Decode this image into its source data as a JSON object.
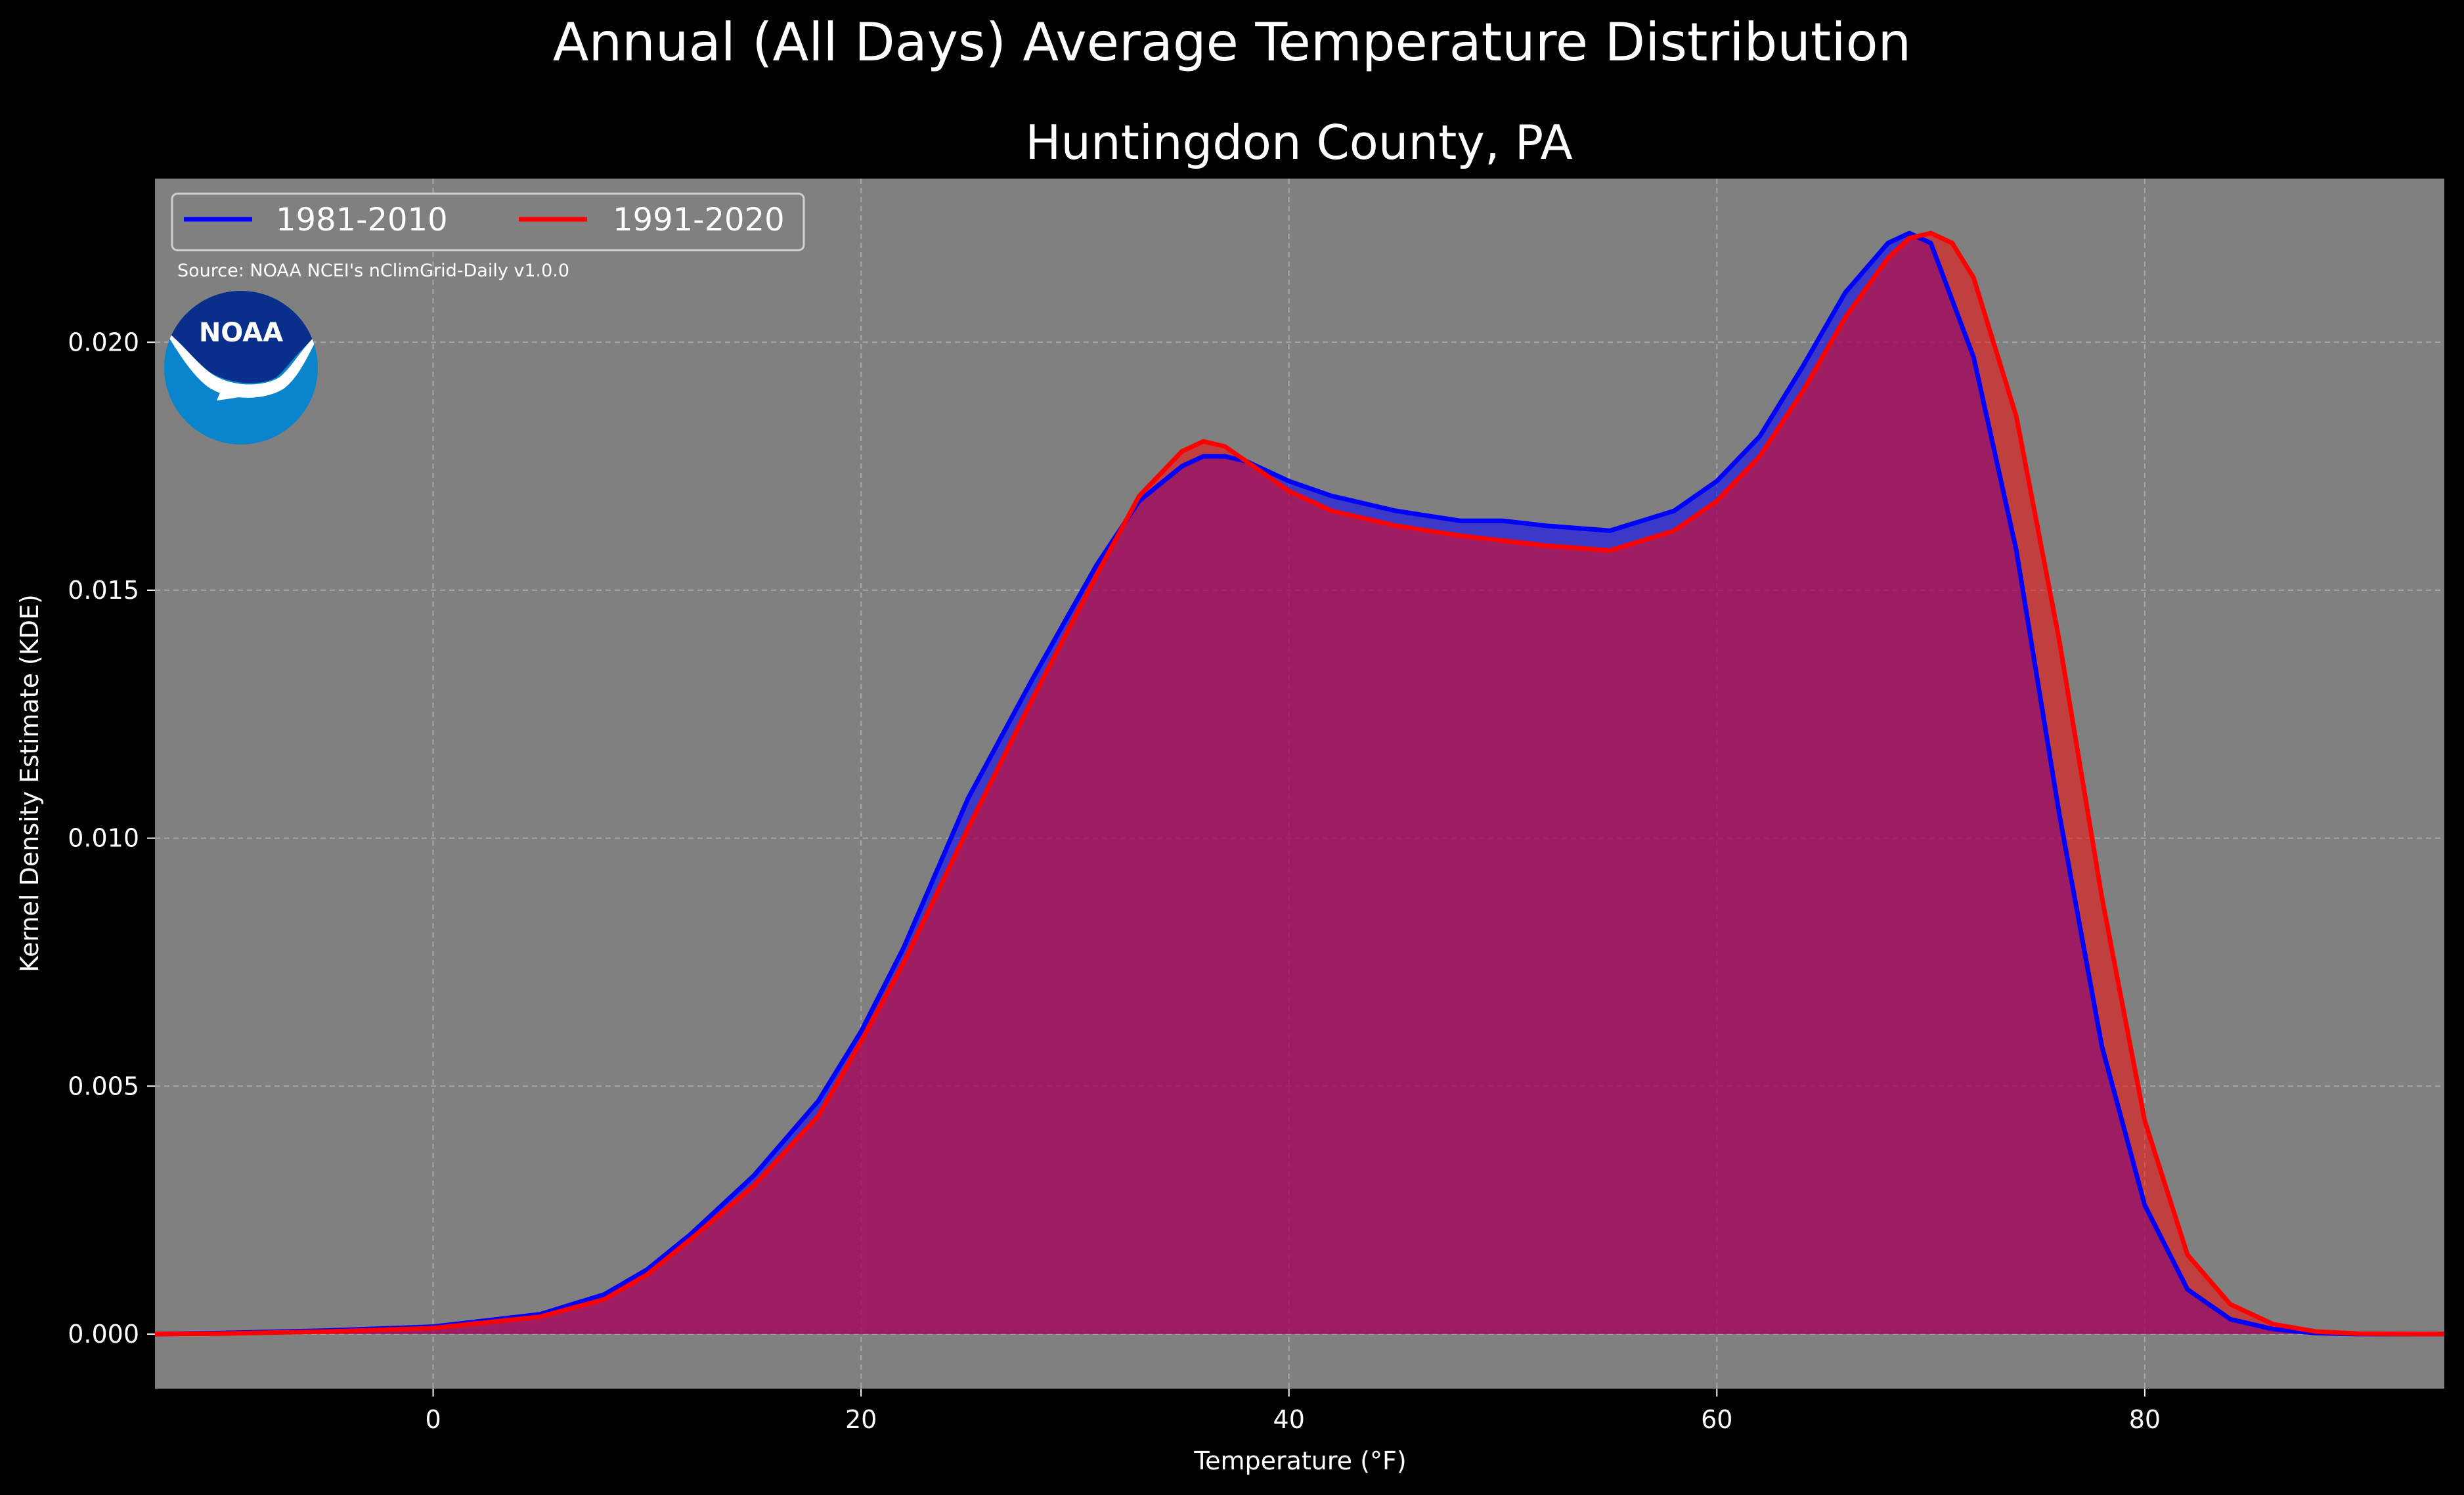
{
  "figure": {
    "suptitle": "Annual (All Days) Average Temperature Distribution",
    "source": "Source: NOAA NCEI's nClimGrid-Daily v1.0.0",
    "logo_text": "NOAA"
  },
  "colors": {
    "figure_bg": "#000000",
    "axes_bg": "#808080",
    "grid": "#c8c8c8",
    "series_1981": "#0000ff",
    "series_1991": "#ff0000",
    "fill_overlap": "#9e1f5c",
    "logo_dark": "#0a2f8a",
    "logo_light": "#0a84cc"
  },
  "chart_data": {
    "type": "area",
    "title": "Huntingdon County, PA",
    "xlabel": "Temperature ($^\\circ$F)",
    "xlabel_display": "Temperature (°F)",
    "ylabel": "Kernel Density Estimate (KDE)",
    "xlim": [
      -13,
      94
    ],
    "ylim": [
      -0.0011,
      0.0233
    ],
    "xticks": [
      0,
      20,
      40,
      60,
      80
    ],
    "yticks": [
      0.0,
      0.005,
      0.01,
      0.015,
      0.02
    ],
    "ytick_labels": [
      "0.000",
      "0.005",
      "0.010",
      "0.015",
      "0.020"
    ],
    "grid": true,
    "legend_placement": "top-left",
    "series": [
      {
        "name": "1981-2010",
        "color": "#0000ff",
        "x": [
          -13,
          -10,
          -5,
          0,
          5,
          8,
          10,
          12,
          15,
          18,
          20,
          22,
          25,
          28,
          31,
          33,
          35,
          36,
          37,
          38,
          40,
          42,
          45,
          48,
          50,
          52,
          55,
          58,
          60,
          62,
          64,
          66,
          68,
          69,
          70,
          72,
          74,
          76,
          78,
          80,
          82,
          84,
          86,
          88,
          90,
          94
        ],
        "y": [
          0.0,
          2e-05,
          7e-05,
          0.00015,
          0.0004,
          0.0008,
          0.0013,
          0.002,
          0.0032,
          0.0047,
          0.0061,
          0.0078,
          0.0108,
          0.0132,
          0.0155,
          0.0168,
          0.0175,
          0.0177,
          0.0177,
          0.0176,
          0.0172,
          0.0169,
          0.0166,
          0.0164,
          0.0164,
          0.0163,
          0.0162,
          0.0166,
          0.0172,
          0.0181,
          0.0195,
          0.021,
          0.022,
          0.0222,
          0.022,
          0.0197,
          0.0158,
          0.0105,
          0.0058,
          0.0026,
          0.0009,
          0.0003,
          0.0001,
          2e-05,
          0.0,
          0.0
        ]
      },
      {
        "name": "1991-2020",
        "color": "#ff0000",
        "x": [
          -13,
          -10,
          -5,
          0,
          5,
          8,
          10,
          12,
          15,
          18,
          20,
          22,
          25,
          28,
          31,
          33,
          35,
          36,
          37,
          38,
          40,
          42,
          45,
          48,
          50,
          52,
          55,
          58,
          60,
          62,
          64,
          66,
          68,
          69,
          70,
          71,
          72,
          74,
          76,
          78,
          80,
          82,
          84,
          86,
          88,
          90,
          94
        ],
        "y": [
          0.0,
          1e-05,
          5e-05,
          0.00012,
          0.00035,
          0.0007,
          0.0012,
          0.0019,
          0.003,
          0.0044,
          0.0059,
          0.0075,
          0.0102,
          0.0128,
          0.0153,
          0.0169,
          0.0178,
          0.018,
          0.0179,
          0.0176,
          0.017,
          0.0166,
          0.0163,
          0.0161,
          0.016,
          0.0159,
          0.0158,
          0.0162,
          0.0168,
          0.0177,
          0.019,
          0.0205,
          0.0217,
          0.0221,
          0.0222,
          0.022,
          0.0213,
          0.0185,
          0.014,
          0.0088,
          0.0043,
          0.0016,
          0.0006,
          0.0002,
          5e-05,
          1e-05,
          0.0
        ]
      }
    ]
  }
}
